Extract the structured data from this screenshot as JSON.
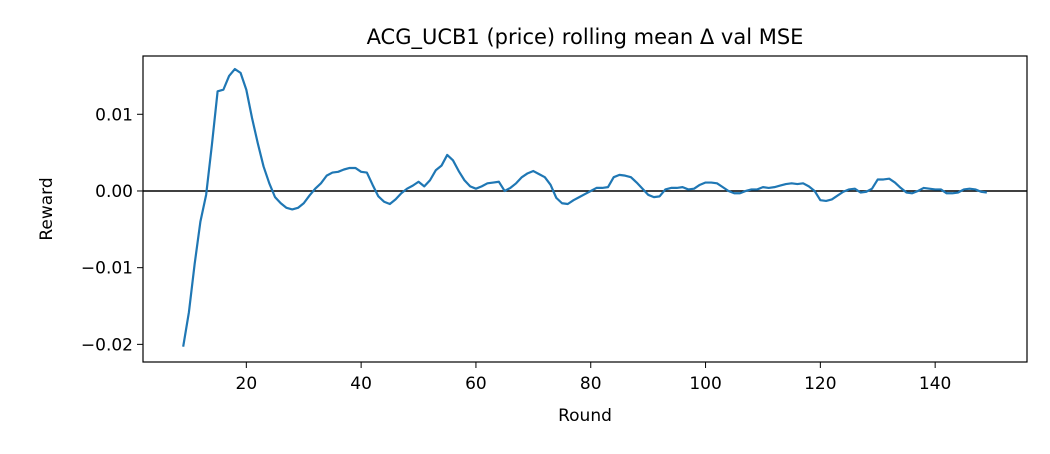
{
  "chart_data": {
    "type": "line",
    "title": "ACG_UCB1 (price) rolling mean Δ val MSE",
    "xlabel": "Round",
    "ylabel": "Reward",
    "color": "#1f77b4",
    "axhline": 0,
    "xlim": [
      2,
      156
    ],
    "xticks": [
      20,
      40,
      60,
      80,
      100,
      120,
      140
    ],
    "ylim": [
      -0.0223,
      0.0176
    ],
    "yticks": [
      {
        "value": -0.02,
        "label": "−0.02"
      },
      {
        "value": -0.01,
        "label": "−0.01"
      },
      {
        "value": 0,
        "label": "0.00"
      },
      0.01
    ],
    "x": [
      9,
      10,
      11,
      12,
      13,
      14,
      15,
      16,
      17,
      18,
      19,
      20,
      21,
      22,
      23,
      24,
      25,
      26,
      27,
      28,
      29,
      30,
      31,
      32,
      33,
      34,
      35,
      36,
      37,
      38,
      39,
      40,
      41,
      42,
      43,
      44,
      45,
      46,
      47,
      48,
      49,
      50,
      51,
      52,
      53,
      54,
      55,
      56,
      57,
      58,
      59,
      60,
      61,
      62,
      63,
      64,
      65,
      66,
      67,
      68,
      69,
      70,
      71,
      72,
      73,
      74,
      75,
      76,
      77,
      78,
      79,
      80,
      81,
      82,
      83,
      84,
      85,
      86,
      87,
      88,
      89,
      90,
      91,
      92,
      93,
      94,
      95,
      96,
      97,
      98,
      99,
      100,
      101,
      102,
      103,
      104,
      105,
      106,
      107,
      108,
      109,
      110,
      111,
      112,
      113,
      114,
      115,
      116,
      117,
      118,
      119,
      120,
      121,
      122,
      123,
      124,
      125,
      126,
      127,
      128,
      129,
      130,
      131,
      132,
      133,
      134,
      135,
      136,
      137,
      138,
      139,
      140,
      141,
      142,
      143,
      144,
      145,
      146,
      147,
      148,
      149
    ],
    "values": [
      -0.0203,
      -0.0158,
      -0.0095,
      -0.004,
      -0.0005,
      0.006,
      0.013,
      0.0132,
      0.015,
      0.0159,
      0.0154,
      0.0132,
      0.0095,
      0.0062,
      0.0032,
      0.001,
      -0.0008,
      -0.0016,
      -0.0022,
      -0.0024,
      -0.0022,
      -0.0016,
      -0.0006,
      0.0003,
      0.001,
      0.002,
      0.0024,
      0.0025,
      0.0028,
      0.003,
      0.003,
      0.0025,
      0.0024,
      0.0008,
      -0.0007,
      -0.0014,
      -0.0017,
      -0.0011,
      -0.0003,
      0.0003,
      0.0007,
      0.0012,
      0.0006,
      0.0014,
      0.0027,
      0.0033,
      0.0047,
      0.004,
      0.0026,
      0.0014,
      0.0006,
      0.0003,
      0.0006,
      0.001,
      0.0011,
      0.0012,
      0.0,
      0.0004,
      0.001,
      0.0018,
      0.0023,
      0.0026,
      0.0022,
      0.0018,
      0.0008,
      -0.0009,
      -0.0016,
      -0.0017,
      -0.0012,
      -0.0008,
      -0.0004,
      0.0,
      0.0004,
      0.0004,
      0.0005,
      0.0018,
      0.0021,
      0.002,
      0.0018,
      0.0011,
      0.0003,
      -0.0005,
      -0.0008,
      -0.0007,
      0.0002,
      0.0004,
      0.0004,
      0.0005,
      0.0002,
      0.0003,
      0.0008,
      0.0011,
      0.0011,
      0.001,
      0.0005,
      0.0,
      -0.0003,
      -0.0003,
      0.0,
      0.0002,
      0.0002,
      0.0005,
      0.0004,
      0.0005,
      0.0007,
      0.0009,
      0.001,
      0.0009,
      0.001,
      0.0006,
      0.0,
      -0.0012,
      -0.0013,
      -0.0011,
      -0.0006,
      -0.0001,
      0.0002,
      0.0003,
      -0.0002,
      -0.0001,
      0.0003,
      0.0015,
      0.0015,
      0.0016,
      0.0011,
      0.0004,
      -0.0002,
      -0.0003,
      0.0,
      0.0004,
      0.0003,
      0.0002,
      0.0002,
      -0.0003,
      -0.0003,
      -0.0002,
      0.0002,
      0.0003,
      0.0002,
      -0.0001,
      -0.0002
    ]
  }
}
